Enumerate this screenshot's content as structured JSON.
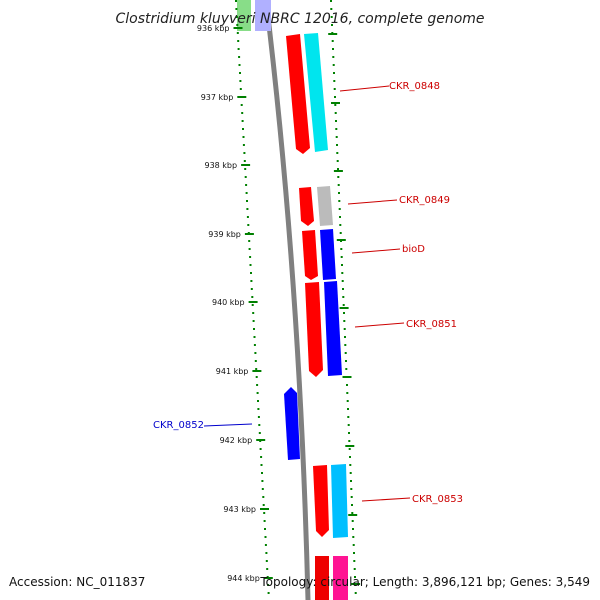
{
  "title": "Clostridium kluyveri NBRC 12016, complete genome",
  "footer": {
    "accession": "Accession: NC_011837",
    "stats": "Topology: circular; Length: 3,896,121 bp; Genes: 3,549"
  },
  "colors": {
    "forward_strand": "#ff0000",
    "reverse_strand": "#0000ff",
    "label_forward": "#cc0000",
    "label_reverse": "#0000cc",
    "tick": "#008000",
    "backbone": "#808080"
  },
  "ticks": [
    {
      "label": "936 kbp"
    },
    {
      "label": "937 kbp"
    },
    {
      "label": "938 kbp"
    },
    {
      "label": "939 kbp"
    },
    {
      "label": "940 kbp"
    },
    {
      "label": "941 kbp"
    },
    {
      "label": "942 kbp"
    },
    {
      "label": "943 kbp"
    },
    {
      "label": "944 kbp"
    }
  ],
  "genes": [
    {
      "name": "CKR_0848",
      "strand": "forward"
    },
    {
      "name": "CKR_0849",
      "strand": "forward"
    },
    {
      "name": "bioD",
      "strand": "forward"
    },
    {
      "name": "CKR_0851",
      "strand": "forward"
    },
    {
      "name": "CKR_0852",
      "strand": "reverse"
    },
    {
      "name": "CKR_0853",
      "strand": "forward"
    }
  ]
}
